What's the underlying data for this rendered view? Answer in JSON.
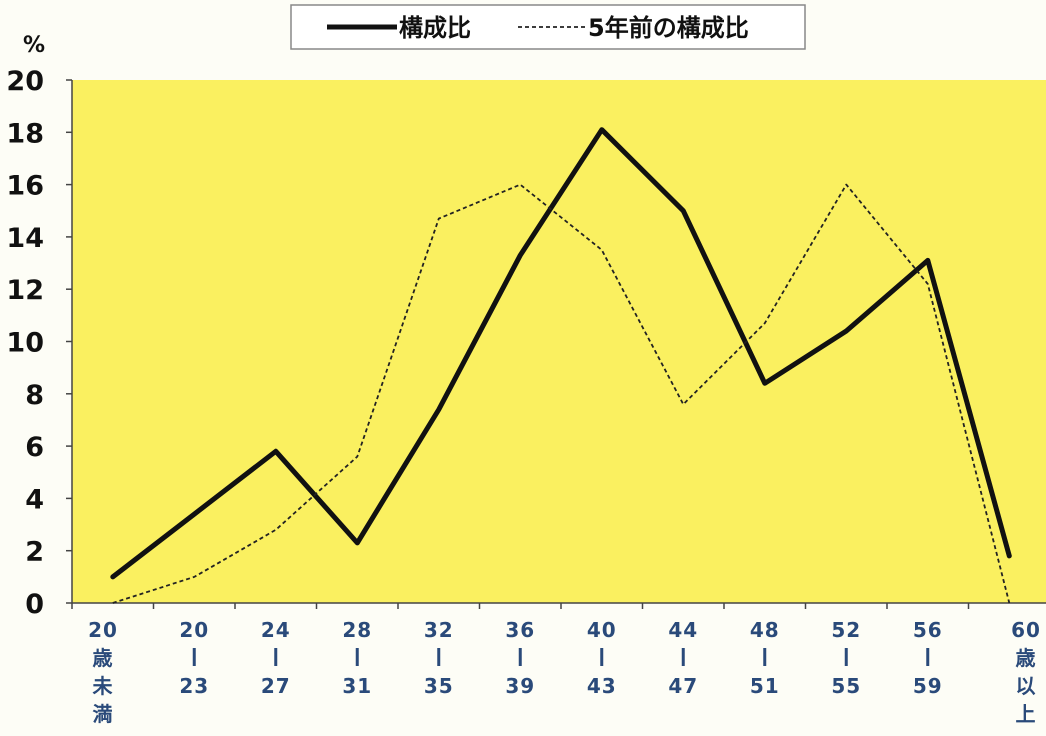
{
  "chart_data": {
    "type": "line",
    "title": "",
    "xlabel": "",
    "ylabel": "%",
    "ylim": [
      0,
      20
    ],
    "yticks": [
      "0",
      "2",
      "4",
      "6",
      "8",
      "10",
      "12",
      "14",
      "16",
      "18",
      "20"
    ],
    "grid": false,
    "legend_position": "top-center",
    "categories": [
      [
        "20",
        "歳",
        "未",
        "満"
      ],
      [
        "20",
        "|",
        "23"
      ],
      [
        "24",
        "|",
        "27"
      ],
      [
        "28",
        "|",
        "31"
      ],
      [
        "32",
        "|",
        "35"
      ],
      [
        "36",
        "|",
        "39"
      ],
      [
        "40",
        "|",
        "43"
      ],
      [
        "44",
        "|",
        "47"
      ],
      [
        "48",
        "|",
        "51"
      ],
      [
        "52",
        "|",
        "55"
      ],
      [
        "56",
        "|",
        "59"
      ],
      [
        "60",
        "歳",
        "以",
        "上"
      ]
    ],
    "series": [
      {
        "name": "構成比",
        "style": "solid",
        "color": "#111111",
        "values": [
          1.0,
          3.4,
          5.8,
          2.3,
          7.4,
          13.3,
          18.1,
          15.0,
          8.4,
          10.4,
          13.1,
          1.8
        ]
      },
      {
        "name": "5年前の構成比",
        "style": "dashed",
        "color": "#222222",
        "values": [
          0.0,
          1.0,
          2.8,
          5.6,
          14.7,
          16.0,
          13.5,
          7.6,
          10.7,
          16.0,
          12.2,
          0.0
        ]
      }
    ],
    "colors": {
      "plot_background": "#faf060",
      "page_background": "#fdfdf6",
      "axis_label_color": "#2a4a7a",
      "tick_label_color": "#111111"
    }
  }
}
